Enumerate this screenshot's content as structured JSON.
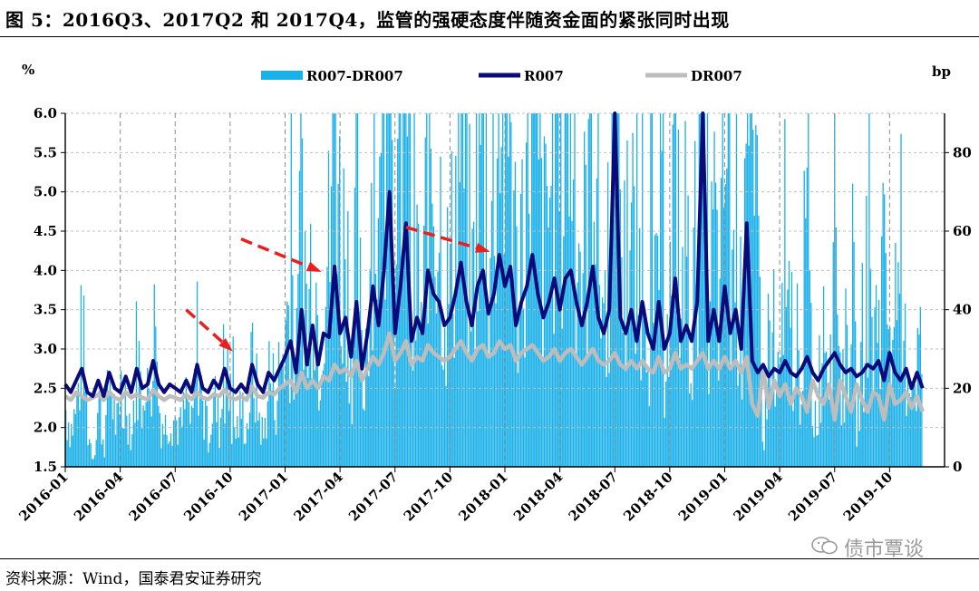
{
  "title": "图 5：2016Q3、2017Q2 和 2017Q4，监管的强硬态度伴随资金面的紧张同时出现",
  "source": "资料来源：Wind，国泰君安证券研究",
  "watermark": "债市覃谈",
  "chart_data": {
    "type": "line",
    "left_axis": {
      "unit": "%",
      "min": 1.5,
      "max": 6.0,
      "ticks": [
        "1.5",
        "2.0",
        "2.5",
        "3.0",
        "3.5",
        "4.0",
        "4.5",
        "5.0",
        "5.5",
        "6.0"
      ]
    },
    "right_axis": {
      "unit": "bp",
      "min": 0,
      "max": 90,
      "ticks": [
        "0",
        "20",
        "40",
        "60",
        "80"
      ]
    },
    "x_ticks": [
      "2016-01",
      "2016-04",
      "2016-07",
      "2016-10",
      "2017-01",
      "2017-04",
      "2017-07",
      "2017-10",
      "2018-01",
      "2018-04",
      "2018-07",
      "2018-10",
      "2019-01",
      "2019-04",
      "2019-07",
      "2019-10"
    ],
    "grid": true,
    "legend": {
      "placement": "top",
      "items": [
        {
          "label": "R007-DR007",
          "color": "#1ab0e8",
          "type": "bar"
        },
        {
          "label": "R007",
          "color": "#0a0a7a",
          "type": "line"
        },
        {
          "label": "DR007",
          "color": "#bdbdbd",
          "type": "line"
        }
      ]
    },
    "series": [
      {
        "name": "R007",
        "axis": "left",
        "color": "#0a0a7a",
        "x": [
          0,
          0.3,
          0.6,
          0.9,
          1.2,
          1.5,
          1.8,
          2.1,
          2.4,
          2.7,
          3.0,
          3.3,
          3.6,
          3.9,
          4.2,
          4.5,
          4.8,
          5.1,
          5.4,
          5.7,
          6.0,
          6.3,
          6.6,
          6.9,
          7.2,
          7.5,
          7.8,
          8.1,
          8.4,
          8.7,
          9.0,
          9.3,
          9.6,
          9.9,
          10.2,
          10.5,
          10.8,
          11.1,
          11.4,
          11.7,
          12.0,
          12.3,
          12.6,
          12.9,
          13.2,
          13.5,
          13.8,
          14.1,
          14.4,
          14.7,
          15.0,
          15.3,
          15.6,
          15.9,
          16.2,
          16.5,
          16.8,
          17.1,
          17.4,
          17.7,
          18.0,
          18.3,
          18.6,
          18.9,
          19.2,
          19.5,
          19.8,
          20.1,
          20.4,
          20.7,
          21.0,
          21.3,
          21.6,
          21.9,
          22.2,
          22.5,
          22.8,
          23.1,
          23.4,
          23.7,
          24.0,
          24.3,
          24.6,
          24.9,
          25.2,
          25.5,
          25.8,
          26.1,
          26.4,
          26.7,
          27.0,
          27.3,
          27.6,
          27.9,
          28.2,
          28.5,
          28.8,
          29.1,
          29.4,
          29.7,
          30.0,
          30.3,
          30.6,
          30.9,
          31.2,
          31.5,
          31.8,
          32.1,
          32.4,
          32.7,
          33.0,
          33.3,
          33.6,
          33.9,
          34.2,
          34.5,
          34.8,
          35.1,
          35.4,
          35.7,
          36.0,
          36.3,
          36.6,
          36.9,
          37.2,
          37.5,
          37.8,
          38.1,
          38.4,
          38.7,
          39.0,
          39.3,
          39.6,
          39.9,
          40.2,
          40.5,
          40.8,
          41.1,
          41.4,
          41.7,
          42.0,
          42.3,
          42.6,
          42.9,
          43.2,
          43.5,
          43.8,
          44.1,
          44.4,
          44.7,
          45.0,
          45.3,
          45.6,
          45.9,
          46.2,
          46.5,
          46.8
        ],
        "values": [
          2.55,
          2.45,
          2.6,
          2.75,
          2.45,
          2.4,
          2.6,
          2.4,
          2.7,
          2.5,
          2.45,
          2.65,
          2.45,
          2.75,
          2.5,
          2.55,
          2.85,
          2.55,
          2.45,
          2.55,
          2.5,
          2.45,
          2.6,
          2.45,
          2.8,
          2.5,
          2.45,
          2.6,
          2.5,
          2.75,
          2.5,
          2.45,
          2.55,
          2.45,
          2.8,
          2.55,
          2.45,
          2.7,
          2.6,
          2.75,
          2.9,
          3.1,
          2.7,
          3.5,
          2.8,
          3.3,
          2.8,
          3.2,
          3.15,
          4.05,
          3.2,
          3.4,
          2.9,
          3.6,
          2.75,
          3.2,
          3.8,
          3.3,
          4.0,
          5.0,
          3.2,
          3.8,
          4.6,
          3.1,
          3.4,
          3.2,
          4.0,
          3.7,
          3.6,
          3.3,
          3.4,
          3.7,
          4.1,
          3.6,
          3.3,
          3.8,
          4.0,
          3.45,
          3.7,
          4.2,
          3.8,
          4.05,
          3.3,
          3.6,
          3.8,
          4.2,
          3.7,
          3.4,
          3.6,
          3.9,
          3.5,
          3.9,
          4.0,
          3.6,
          3.3,
          3.6,
          4.05,
          3.4,
          3.2,
          3.5,
          6.0,
          3.4,
          3.2,
          3.5,
          3.1,
          3.6,
          3.2,
          3.0,
          3.6,
          3.0,
          3.2,
          3.9,
          3.1,
          3.3,
          3.1,
          3.6,
          6.0,
          3.1,
          3.5,
          3.1,
          3.8,
          3.2,
          3.5,
          3.0,
          4.6,
          2.85,
          2.7,
          2.8,
          2.65,
          2.75,
          2.7,
          2.85,
          2.7,
          2.65,
          2.75,
          2.9,
          2.7,
          2.6,
          2.75,
          2.85,
          2.95,
          2.8,
          2.7,
          2.75,
          2.65,
          2.7,
          2.8,
          2.75,
          2.85,
          2.6,
          2.95,
          2.7,
          2.6,
          2.75,
          2.5,
          2.7,
          2.5
        ]
      },
      {
        "name": "DR007",
        "axis": "left",
        "color": "#bdbdbd",
        "x": [
          0,
          0.3,
          0.6,
          0.9,
          1.2,
          1.5,
          1.8,
          2.1,
          2.4,
          2.7,
          3.0,
          3.3,
          3.6,
          3.9,
          4.2,
          4.5,
          4.8,
          5.1,
          5.4,
          5.7,
          6.0,
          6.3,
          6.6,
          6.9,
          7.2,
          7.5,
          7.8,
          8.1,
          8.4,
          8.7,
          9.0,
          9.3,
          9.6,
          9.9,
          10.2,
          10.5,
          10.8,
          11.1,
          11.4,
          11.7,
          12.0,
          12.3,
          12.6,
          12.9,
          13.2,
          13.5,
          13.8,
          14.1,
          14.4,
          14.7,
          15.0,
          15.3,
          15.6,
          15.9,
          16.2,
          16.5,
          16.8,
          17.1,
          17.4,
          17.7,
          18.0,
          18.3,
          18.6,
          18.9,
          19.2,
          19.5,
          19.8,
          20.1,
          20.4,
          20.7,
          21.0,
          21.3,
          21.6,
          21.9,
          22.2,
          22.5,
          22.8,
          23.1,
          23.4,
          23.7,
          24.0,
          24.3,
          24.6,
          24.9,
          25.2,
          25.5,
          25.8,
          26.1,
          26.4,
          26.7,
          27.0,
          27.3,
          27.6,
          27.9,
          28.2,
          28.5,
          28.8,
          29.1,
          29.4,
          29.7,
          30.0,
          30.3,
          30.6,
          30.9,
          31.2,
          31.5,
          31.8,
          32.1,
          32.4,
          32.7,
          33.0,
          33.3,
          33.6,
          33.9,
          34.2,
          34.5,
          34.8,
          35.1,
          35.4,
          35.7,
          36.0,
          36.3,
          36.6,
          36.9,
          37.2,
          37.5,
          37.8,
          38.1,
          38.4,
          38.7,
          39.0,
          39.3,
          39.6,
          39.9,
          40.2,
          40.5,
          40.8,
          41.1,
          41.4,
          41.7,
          42.0,
          42.3,
          42.6,
          42.9,
          43.2,
          43.5,
          43.8,
          44.1,
          44.4,
          44.7,
          45.0,
          45.3,
          45.6,
          45.9,
          46.2,
          46.5,
          46.8
        ],
        "values": [
          2.4,
          2.35,
          2.45,
          2.4,
          2.35,
          2.38,
          2.42,
          2.35,
          2.45,
          2.38,
          2.35,
          2.45,
          2.38,
          2.42,
          2.38,
          2.36,
          2.48,
          2.4,
          2.35,
          2.4,
          2.38,
          2.35,
          2.42,
          2.36,
          2.45,
          2.38,
          2.36,
          2.42,
          2.4,
          2.48,
          2.38,
          2.36,
          2.4,
          2.35,
          2.52,
          2.4,
          2.38,
          2.45,
          2.42,
          2.5,
          2.55,
          2.6,
          2.45,
          2.7,
          2.5,
          2.6,
          2.5,
          2.65,
          2.6,
          2.8,
          2.7,
          2.75,
          2.65,
          2.85,
          2.6,
          2.75,
          2.9,
          2.8,
          2.95,
          3.2,
          2.85,
          2.95,
          3.1,
          2.8,
          2.9,
          2.85,
          3.05,
          2.95,
          2.9,
          2.85,
          2.9,
          3.0,
          3.1,
          2.95,
          2.85,
          3.0,
          3.05,
          2.9,
          2.95,
          3.1,
          3.0,
          3.05,
          2.85,
          2.95,
          3.0,
          3.05,
          2.95,
          2.85,
          2.9,
          3.0,
          2.85,
          2.95,
          3.0,
          2.9,
          2.8,
          2.9,
          3.0,
          2.85,
          2.8,
          2.85,
          2.95,
          2.8,
          2.75,
          2.85,
          2.75,
          2.85,
          2.75,
          2.7,
          2.9,
          2.7,
          2.75,
          2.95,
          2.75,
          2.8,
          2.75,
          2.85,
          2.95,
          2.75,
          2.85,
          2.75,
          2.9,
          2.75,
          2.85,
          2.7,
          2.9,
          2.3,
          2.15,
          2.75,
          2.25,
          2.6,
          2.4,
          2.55,
          2.3,
          2.5,
          2.4,
          2.2,
          2.6,
          2.4,
          2.3,
          2.55,
          2.1,
          2.6,
          2.4,
          2.2,
          2.55,
          2.35,
          2.2,
          2.45,
          2.4,
          2.1,
          2.55,
          2.3,
          2.35,
          2.45,
          2.25,
          2.4,
          2.2
        ]
      }
    ],
    "annotations": [
      {
        "type": "arrow",
        "color": "#e8211e",
        "from_x": 6.6,
        "from_y": 3.5,
        "to_x": 9.0,
        "to_y": 3.0
      },
      {
        "type": "arrow",
        "color": "#e8211e",
        "from_x": 9.6,
        "from_y": 4.4,
        "to_x": 13.8,
        "to_y": 4.0
      },
      {
        "type": "arrow",
        "color": "#e8211e",
        "from_x": 18.6,
        "from_y": 4.55,
        "to_x": 23.0,
        "to_y": 4.25
      }
    ]
  }
}
